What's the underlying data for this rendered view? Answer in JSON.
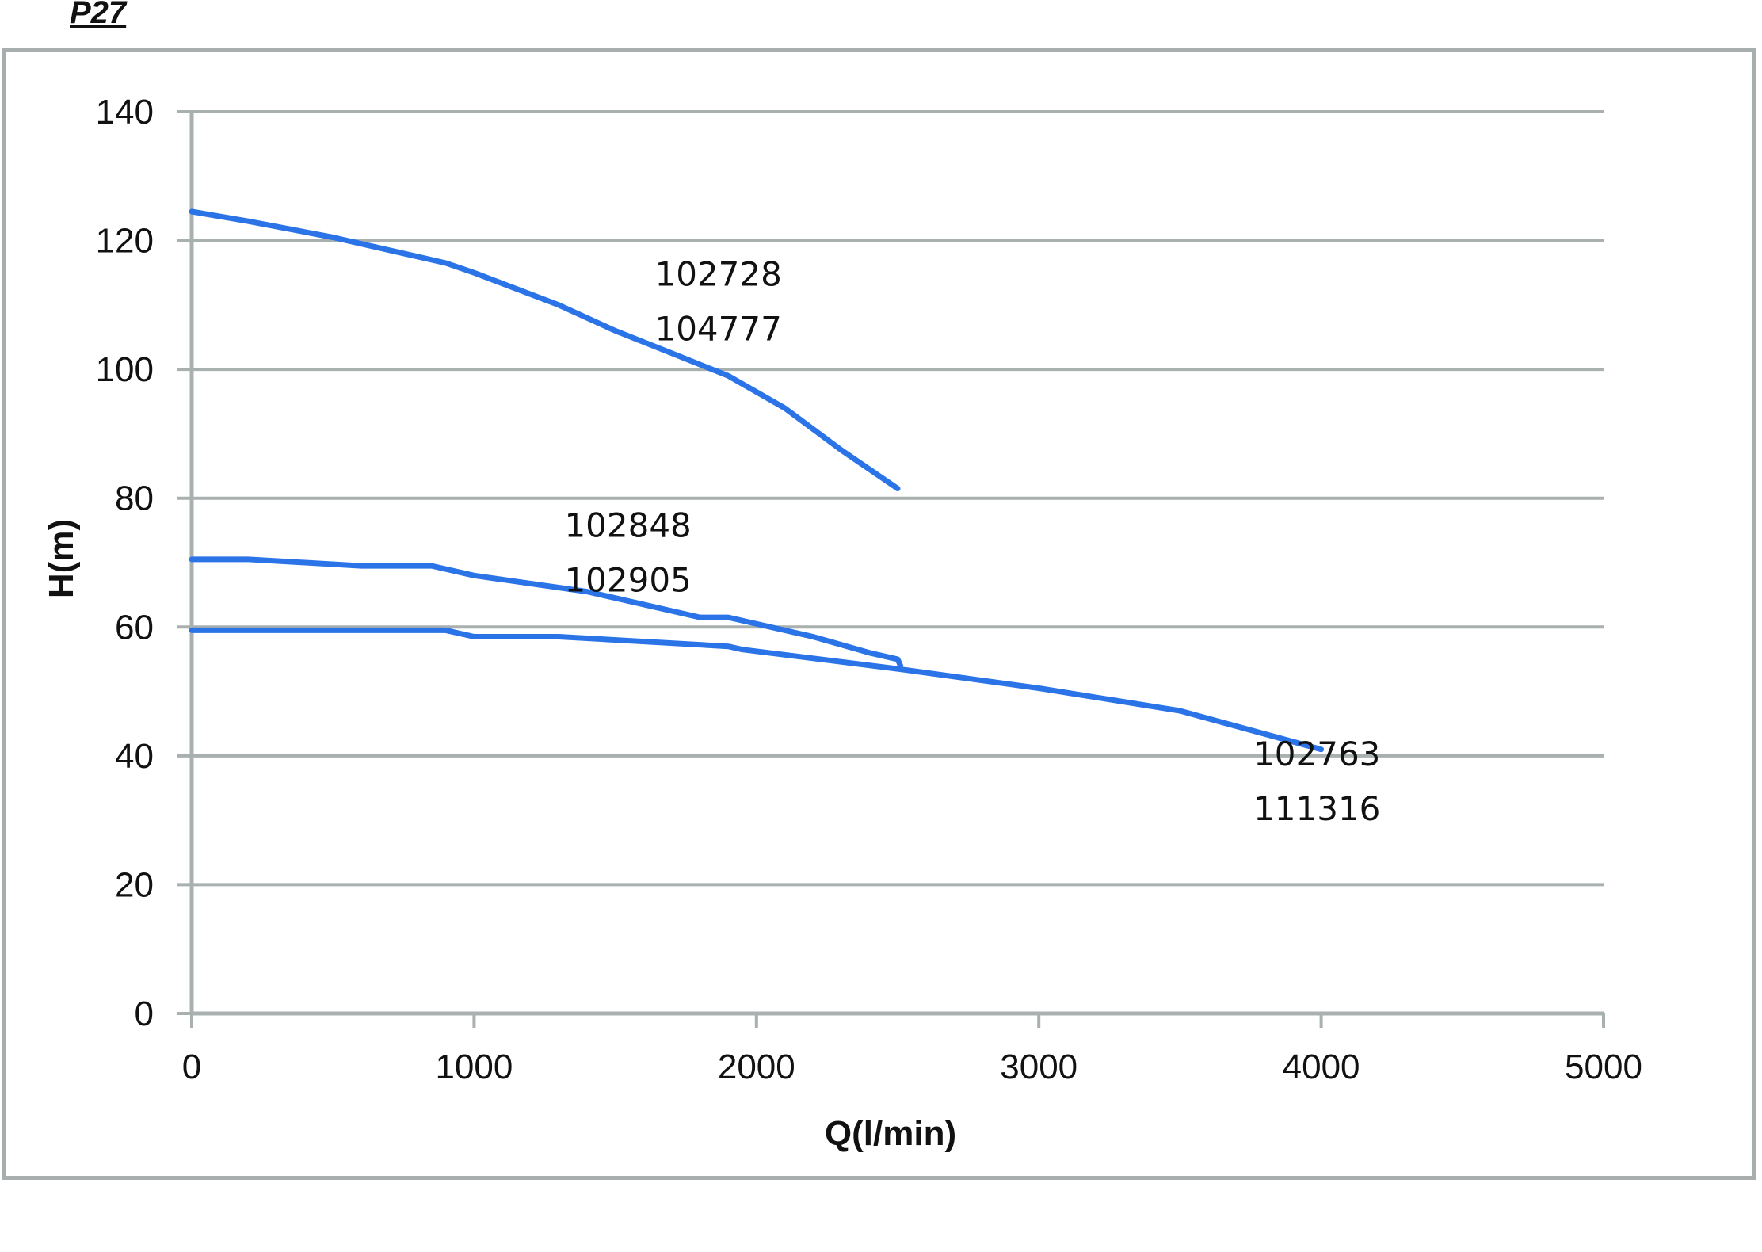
{
  "header": {
    "title": "P27"
  },
  "chart_data": {
    "type": "line",
    "title": "",
    "xlabel": "Q(l/min)",
    "ylabel": "H(m)",
    "xlim": [
      0,
      5000
    ],
    "ylim": [
      0,
      140
    ],
    "xticks": [
      0,
      1000,
      2000,
      3000,
      4000,
      5000
    ],
    "yticks": [
      0,
      20,
      40,
      60,
      80,
      100,
      120,
      140
    ],
    "grid": "horizontal",
    "line_color": "#2b74e8",
    "grid_color": "#a9b0b0",
    "series": [
      {
        "x": [
          0,
          200,
          500,
          900,
          1000,
          1300,
          1500,
          1700,
          1900,
          2100,
          2300,
          2500
        ],
        "y": [
          124.5,
          123,
          120.5,
          116.5,
          115,
          110,
          106,
          102.5,
          99,
          94,
          87.5,
          81.5
        ]
      },
      {
        "x": [
          0,
          200,
          600,
          850,
          1000,
          1400,
          1800,
          1900,
          2200,
          2400,
          2500,
          2510
        ],
        "y": [
          70.5,
          70.5,
          69.5,
          69.5,
          68,
          65.5,
          61.5,
          61.5,
          58.5,
          56,
          55,
          54
        ]
      },
      {
        "x": [
          0,
          900,
          1000,
          1300,
          1900,
          1950,
          2500,
          3000,
          3500,
          4000
        ],
        "y": [
          59.5,
          59.5,
          58.5,
          58.5,
          57,
          56.5,
          53.5,
          50.5,
          47,
          41
        ]
      }
    ],
    "annotations": [
      {
        "text": "102728",
        "x": 1640,
        "y": 113
      },
      {
        "text": "104777",
        "x": 1640,
        "y": 104.5
      },
      {
        "text": "102848",
        "x": 1320,
        "y": 74
      },
      {
        "text": "102905",
        "x": 1320,
        "y": 65.5
      },
      {
        "text": "102763",
        "x": 3760,
        "y": 38.5
      },
      {
        "text": "111316",
        "x": 3760,
        "y": 30
      }
    ]
  }
}
